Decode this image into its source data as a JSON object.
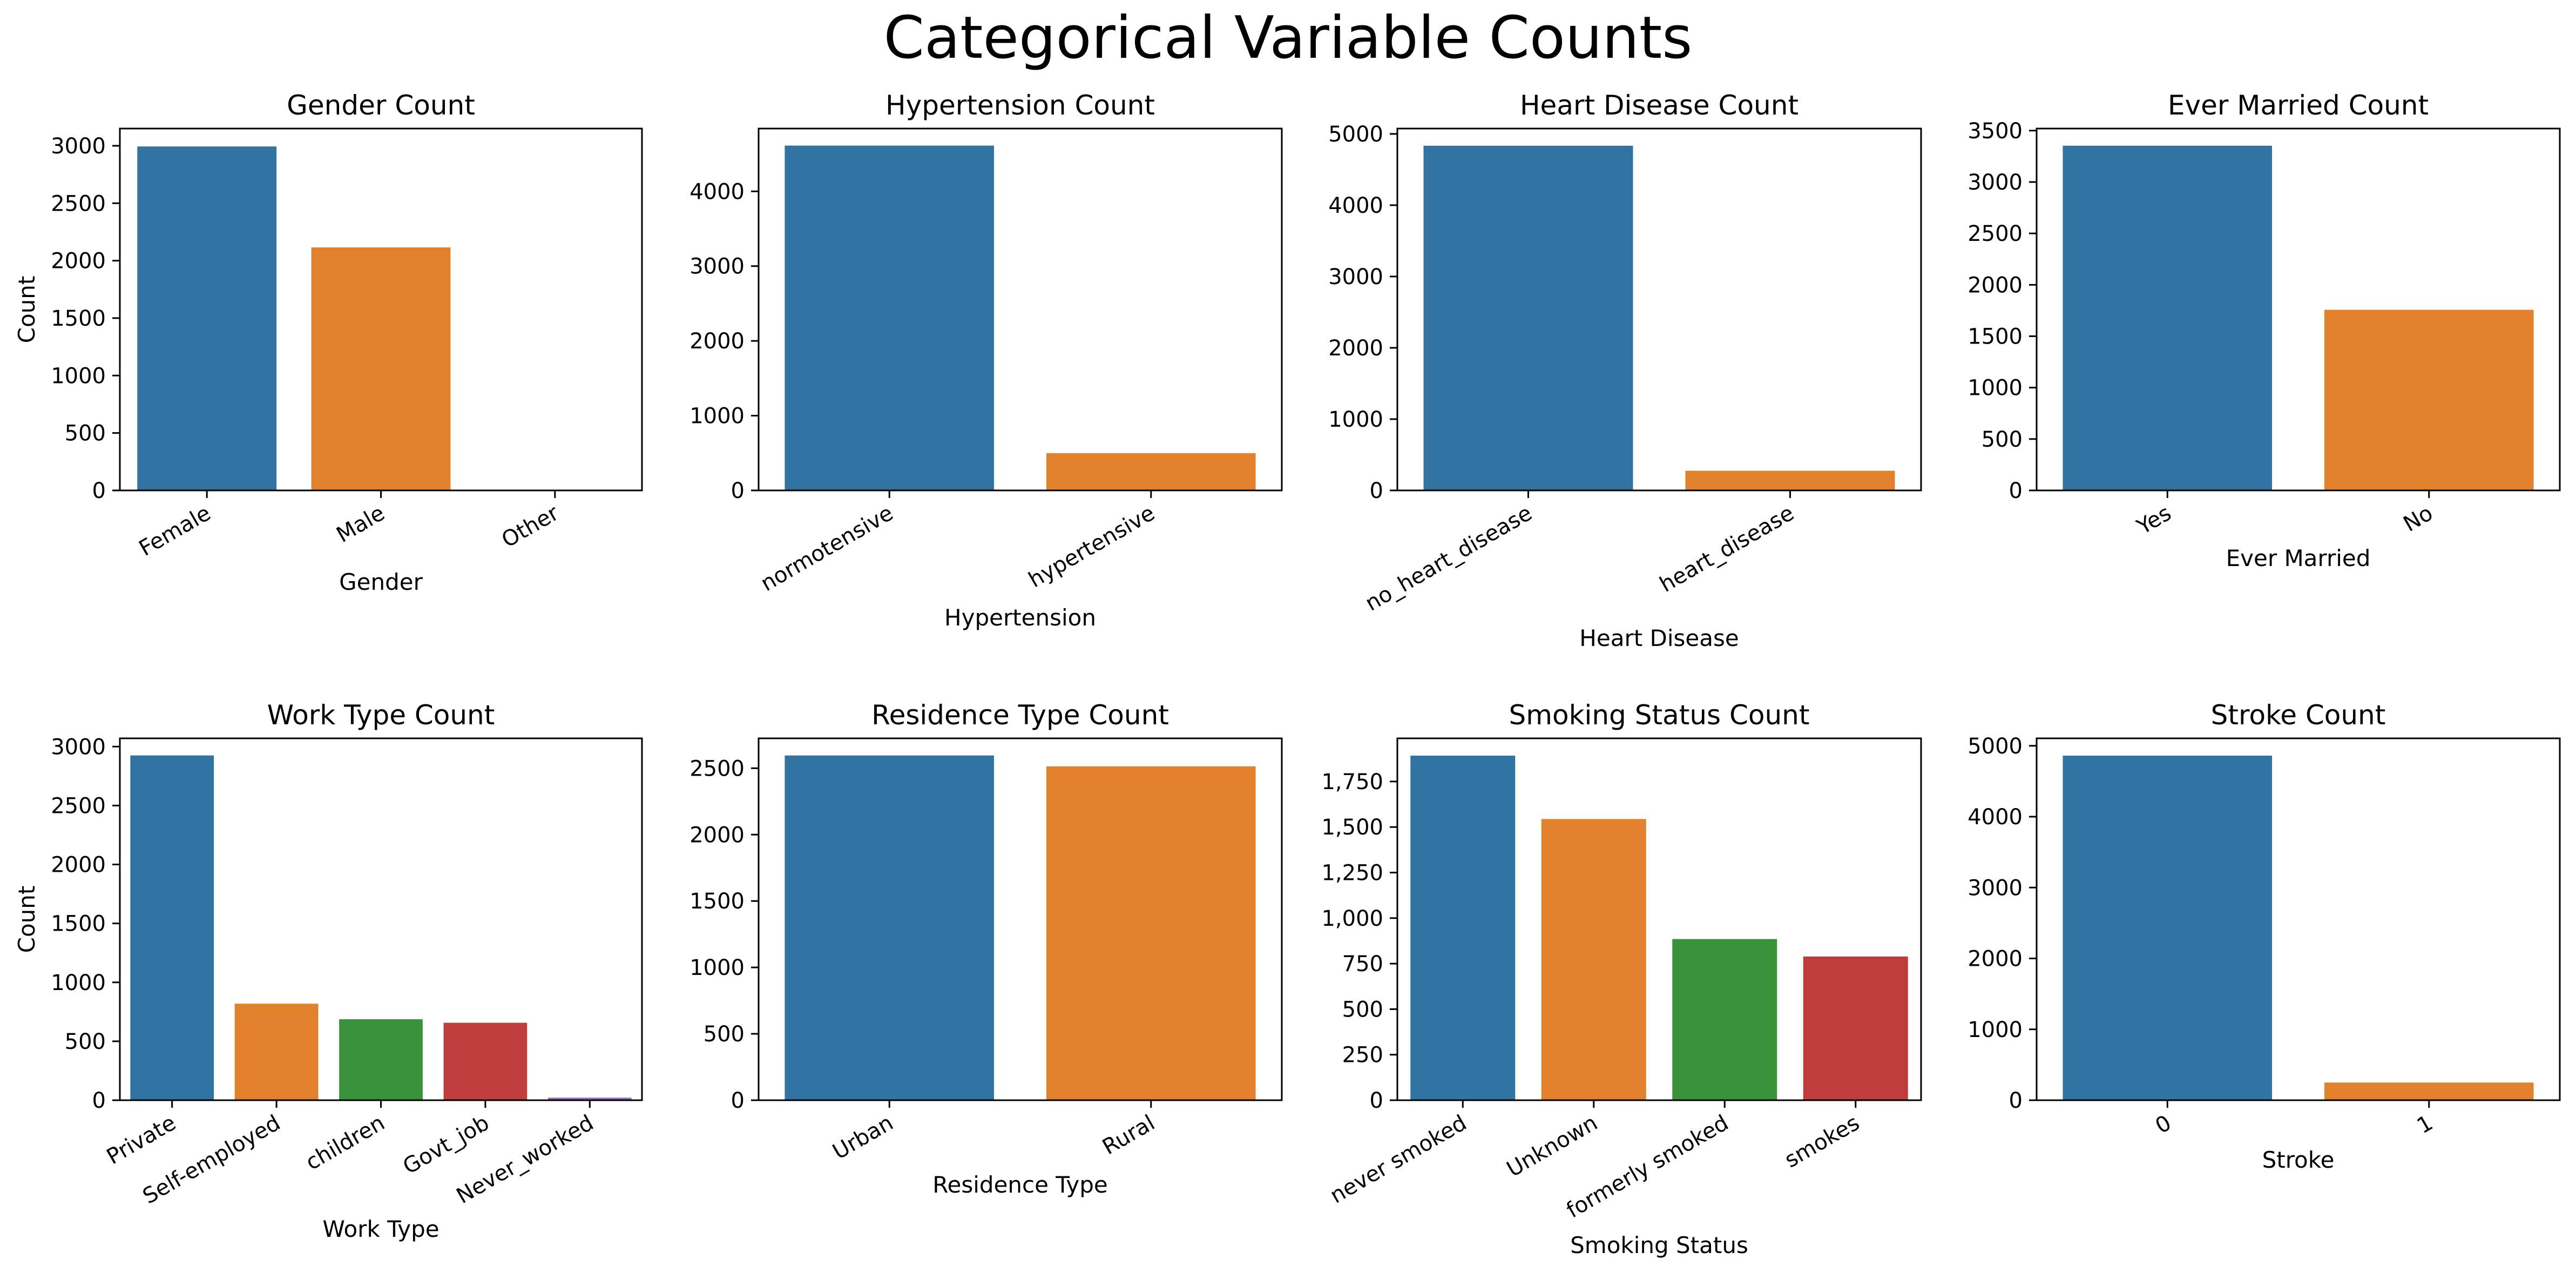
{
  "figure": {
    "title": "Categorical Variable Counts"
  },
  "chart_data": [
    {
      "type": "bar",
      "title": "Gender Count",
      "xlabel": "Gender",
      "ylabel": "Count",
      "categories": [
        "Female",
        "Male",
        "Other"
      ],
      "values": [
        2994,
        2115,
        1
      ],
      "ylim": [
        0,
        3150
      ],
      "yticks": [
        0,
        500,
        1000,
        1500,
        2000,
        2500,
        3000
      ],
      "colors": [
        "#3274a1",
        "#e1812c",
        "#3a923a"
      ]
    },
    {
      "type": "bar",
      "title": "Hypertension Count",
      "xlabel": "Hypertension",
      "ylabel": "",
      "categories": [
        "normotensive",
        "hypertensive"
      ],
      "values": [
        4612,
        498
      ],
      "ylim": [
        0,
        4840
      ],
      "yticks": [
        0,
        1000,
        2000,
        3000,
        4000
      ],
      "colors": [
        "#3274a1",
        "#e1812c"
      ]
    },
    {
      "type": "bar",
      "title": "Heart Disease Count",
      "xlabel": "Heart Disease",
      "ylabel": "",
      "categories": [
        "no_heart_disease",
        "heart_disease"
      ],
      "values": [
        4834,
        276
      ],
      "ylim": [
        0,
        5075
      ],
      "yticks": [
        0,
        1000,
        2000,
        3000,
        4000,
        5000
      ],
      "colors": [
        "#3274a1",
        "#e1812c"
      ]
    },
    {
      "type": "bar",
      "title": "Ever Married Count",
      "xlabel": "Ever Married",
      "ylabel": "",
      "categories": [
        "Yes",
        "No"
      ],
      "values": [
        3353,
        1757
      ],
      "ylim": [
        0,
        3520
      ],
      "yticks": [
        0,
        500,
        1000,
        1500,
        2000,
        2500,
        3000,
        3500
      ],
      "colors": [
        "#3274a1",
        "#e1812c"
      ]
    },
    {
      "type": "bar",
      "title": "Work Type Count",
      "xlabel": "Work Type",
      "ylabel": "Count",
      "categories": [
        "Private",
        "Self-employed",
        "children",
        "Govt_job",
        "Never_worked"
      ],
      "values": [
        2925,
        819,
        687,
        657,
        22
      ],
      "ylim": [
        0,
        3070
      ],
      "yticks": [
        0,
        500,
        1000,
        1500,
        2000,
        2500,
        3000
      ],
      "colors": [
        "#3274a1",
        "#e1812c",
        "#3a923a",
        "#c03d3e",
        "#9372b2"
      ]
    },
    {
      "type": "bar",
      "title": "Residence Type Count",
      "xlabel": "Residence Type",
      "ylabel": "",
      "categories": [
        "Urban",
        "Rural"
      ],
      "values": [
        2596,
        2514
      ],
      "ylim": [
        0,
        2725
      ],
      "yticks": [
        0,
        500,
        1000,
        1500,
        2000,
        2500
      ],
      "colors": [
        "#3274a1",
        "#e1812c"
      ]
    },
    {
      "type": "bar",
      "title": "Smoking Status Count",
      "xlabel": "Smoking Status",
      "ylabel": "",
      "categories": [
        "never smoked",
        "Unknown",
        "formerly smoked",
        "smokes"
      ],
      "values": [
        1892,
        1544,
        885,
        789
      ],
      "ylim": [
        0,
        1987
      ],
      "yticks": [
        0,
        250,
        500,
        750,
        1000,
        1250,
        1500,
        1750
      ],
      "yticklabels": [
        "0",
        "250",
        "500",
        "750",
        "1,000",
        "1,250",
        "1,500",
        "1,750"
      ],
      "colors": [
        "#3274a1",
        "#e1812c",
        "#3a923a",
        "#c03d3e"
      ]
    },
    {
      "type": "bar",
      "title": "Stroke Count",
      "xlabel": "Stroke",
      "ylabel": "",
      "categories": [
        "0",
        "1"
      ],
      "values": [
        4861,
        249
      ],
      "ylim": [
        0,
        5105
      ],
      "yticks": [
        0,
        1000,
        2000,
        3000,
        4000,
        5000
      ],
      "colors": [
        "#3274a1",
        "#e1812c"
      ]
    }
  ]
}
